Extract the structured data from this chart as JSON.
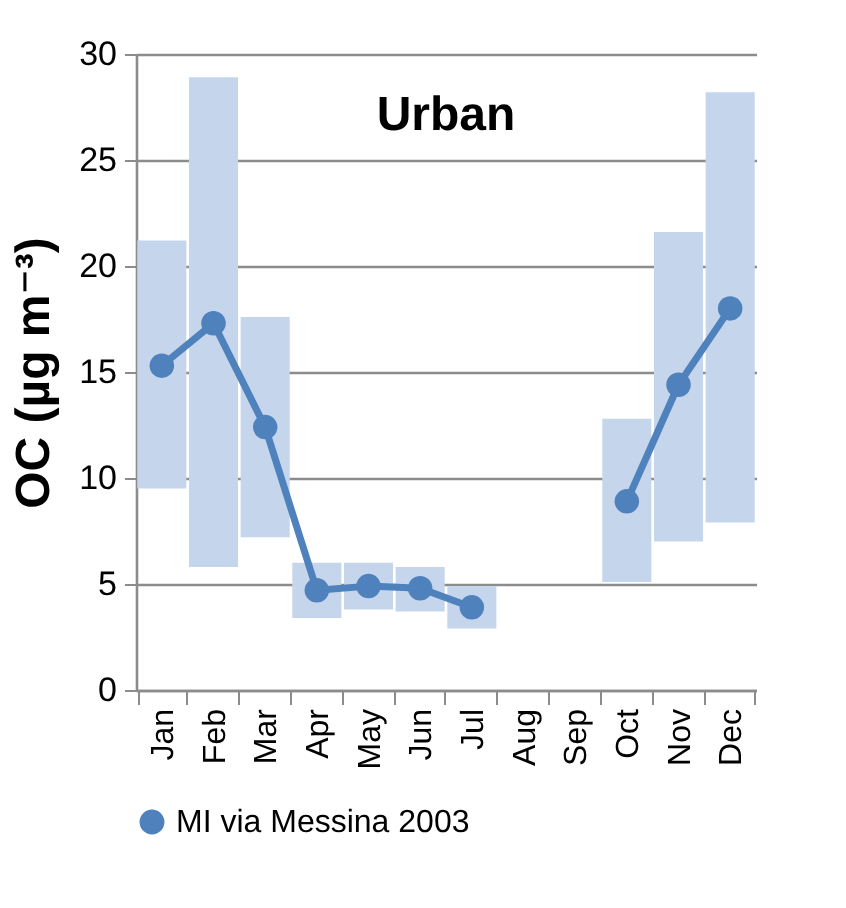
{
  "chart_data": {
    "type": "bar",
    "title": "Urban",
    "ylabel": "OC (µg m⁻³)",
    "categories": [
      "Jan",
      "Feb",
      "Mar",
      "Apr",
      "May",
      "Jun",
      "Jul",
      "Aug",
      "Sep",
      "Oct",
      "Nov",
      "Dec"
    ],
    "series": [
      {
        "color": "#c5d6ec",
        "base": [
          9.5,
          5.8,
          7.2,
          3.4,
          3.8,
          3.7,
          2.9,
          null,
          null,
          5.1,
          7.0,
          7.9
        ],
        "values": [
          11.7,
          23.1,
          10.4,
          2.6,
          2.2,
          2.1,
          2.0,
          null,
          null,
          7.7,
          14.6,
          20.3
        ]
      },
      {
        "type": "line",
        "name": "MI via Messina 2003",
        "color": "#4f81bd",
        "marker": "circle",
        "values": [
          15.3,
          17.3,
          12.4,
          4.7,
          4.9,
          4.8,
          3.9,
          null,
          null,
          8.9,
          14.4,
          18.0
        ]
      }
    ],
    "ylim": [
      0,
      30
    ],
    "yticks": [
      0,
      5,
      10,
      15,
      20,
      25,
      30
    ],
    "grid": "y",
    "legend": "bottom"
  }
}
